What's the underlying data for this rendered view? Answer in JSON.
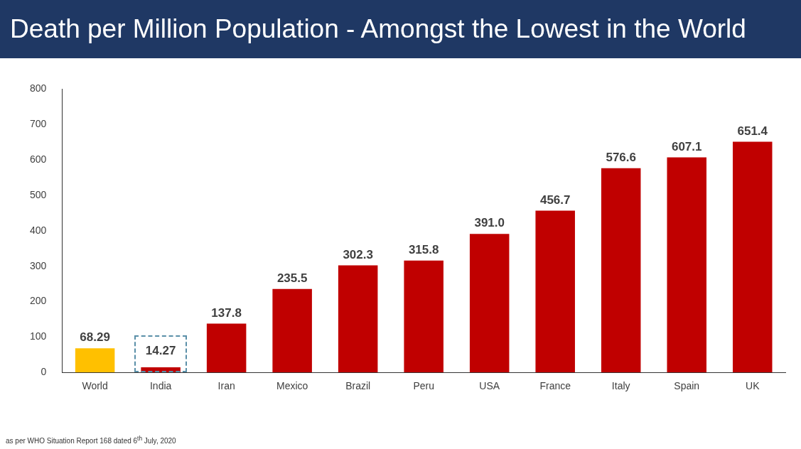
{
  "chart_data": {
    "type": "bar",
    "title": "Death per Million Population - Amongst the Lowest in the World",
    "categories": [
      "World",
      "India",
      "Iran",
      "Mexico",
      "Brazil",
      "Peru",
      "USA",
      "France",
      "Italy",
      "Spain",
      "UK"
    ],
    "values": [
      68.29,
      14.27,
      137.8,
      235.5,
      302.3,
      315.8,
      391.0,
      456.7,
      576.6,
      607.1,
      651.4
    ],
    "value_labels": [
      "68.29",
      "14.27",
      "137.8",
      "235.5",
      "302.3",
      "315.8",
      "391.0",
      "456.7",
      "576.6",
      "607.1",
      "651.4"
    ],
    "colors": [
      "#ffc000",
      "#c00000",
      "#c00000",
      "#c00000",
      "#c00000",
      "#c00000",
      "#c00000",
      "#c00000",
      "#c00000",
      "#c00000",
      "#c00000"
    ],
    "ylim": [
      0,
      800
    ],
    "yticks": [
      0,
      100,
      200,
      300,
      400,
      500,
      600,
      700,
      800
    ],
    "grid": false,
    "legend": false,
    "annotations": [
      "as per WHO Situation Report 168 dated 6$^{th}$ July, 2020"
    ]
  }
}
